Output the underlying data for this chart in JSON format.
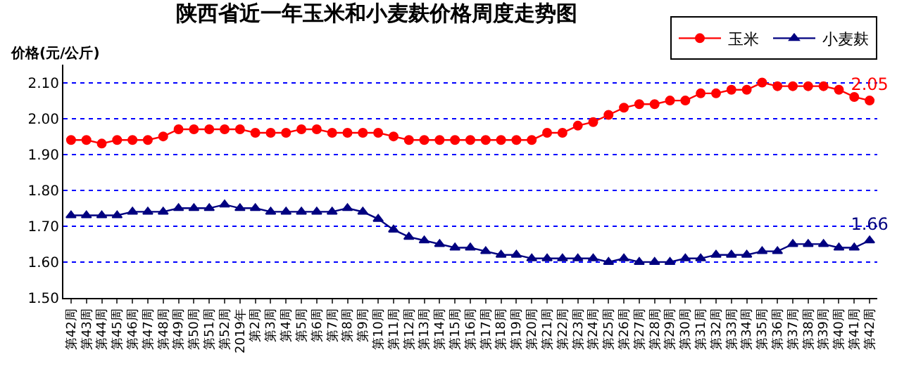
{
  "chart_data": {
    "type": "line",
    "title": "陕西省近一年玉米和小麦麸价格周度走势图",
    "ylabel": "价格(元/公斤)",
    "categories": [
      "第42周",
      "第43周",
      "第44周",
      "第45周",
      "第46周",
      "第47周",
      "第48周",
      "第49周",
      "第50周",
      "第51周",
      "第52周",
      "2019年",
      "第2周",
      "第3周",
      "第4周",
      "第5周",
      "第6周",
      "第7周",
      "第8周",
      "第9周",
      "第10周",
      "第11周",
      "第12周",
      "第13周",
      "第14周",
      "第15周",
      "第16周",
      "第17周",
      "第18周",
      "第19周",
      "第20周",
      "第21周",
      "第22周",
      "第23周",
      "第24周",
      "第25周",
      "第26周",
      "第27周",
      "第28周",
      "第29周",
      "第30周",
      "第31周",
      "第32周",
      "第33周",
      "第34周",
      "第35周",
      "第36周",
      "第37周",
      "第38周",
      "第39周",
      "第40周",
      "第41周",
      "第42周"
    ],
    "series": [
      {
        "name": "玉米",
        "color": "#ff0000",
        "marker": "circle",
        "values": [
          1.94,
          1.94,
          1.93,
          1.94,
          1.94,
          1.94,
          1.95,
          1.97,
          1.97,
          1.97,
          1.97,
          1.97,
          1.96,
          1.96,
          1.96,
          1.97,
          1.97,
          1.96,
          1.96,
          1.96,
          1.96,
          1.95,
          1.94,
          1.94,
          1.94,
          1.94,
          1.94,
          1.94,
          1.94,
          1.94,
          1.94,
          1.96,
          1.96,
          1.98,
          1.99,
          2.01,
          2.03,
          2.04,
          2.04,
          2.05,
          2.05,
          2.07,
          2.07,
          2.08,
          2.08,
          2.1,
          2.09,
          2.09,
          2.09,
          2.09,
          2.08,
          2.06,
          2.05
        ],
        "value_labels": [
          null,
          null,
          null,
          null,
          null,
          null,
          null,
          null,
          null,
          null,
          null,
          null,
          null,
          null,
          null,
          null,
          null,
          null,
          null,
          null,
          null,
          null,
          null,
          null,
          null,
          null,
          null,
          null,
          null,
          null,
          null,
          null,
          null,
          null,
          null,
          null,
          null,
          null,
          null,
          null,
          null,
          null,
          null,
          null,
          null,
          null,
          null,
          null,
          null,
          null,
          null,
          null,
          "2.05"
        ]
      },
      {
        "name": "小麦麸",
        "color": "#000080",
        "marker": "triangle",
        "values": [
          1.73,
          1.73,
          1.73,
          1.73,
          1.74,
          1.74,
          1.74,
          1.75,
          1.75,
          1.75,
          1.76,
          1.75,
          1.75,
          1.74,
          1.74,
          1.74,
          1.74,
          1.74,
          1.75,
          1.74,
          1.72,
          1.69,
          1.67,
          1.66,
          1.65,
          1.64,
          1.64,
          1.63,
          1.62,
          1.62,
          1.61,
          1.61,
          1.61,
          1.61,
          1.61,
          1.6,
          1.61,
          1.6,
          1.6,
          1.6,
          1.61,
          1.61,
          1.62,
          1.62,
          1.62,
          1.63,
          1.63,
          1.65,
          1.65,
          1.65,
          1.64,
          1.64,
          1.66
        ],
        "value_labels": [
          null,
          null,
          null,
          null,
          null,
          null,
          null,
          null,
          null,
          null,
          null,
          null,
          null,
          null,
          null,
          null,
          null,
          null,
          null,
          null,
          null,
          null,
          null,
          null,
          null,
          null,
          null,
          null,
          null,
          null,
          null,
          null,
          null,
          null,
          null,
          null,
          null,
          null,
          null,
          null,
          null,
          null,
          null,
          null,
          null,
          null,
          null,
          null,
          null,
          null,
          null,
          null,
          "1.66"
        ]
      }
    ],
    "ylim": [
      1.5,
      2.15
    ],
    "yticks": [
      {
        "value": 1.5,
        "label": "1.50"
      },
      {
        "value": 1.6,
        "label": "1.60"
      },
      {
        "value": 1.7,
        "label": "1.70"
      },
      {
        "value": 1.8,
        "label": "1.80"
      },
      {
        "value": 1.9,
        "label": "1.90"
      },
      {
        "value": 2.0,
        "label": "2.00"
      },
      {
        "value": 2.1,
        "label": "2.10"
      }
    ],
    "grid": "y",
    "legend": "top right",
    "line_style": "solid"
  }
}
